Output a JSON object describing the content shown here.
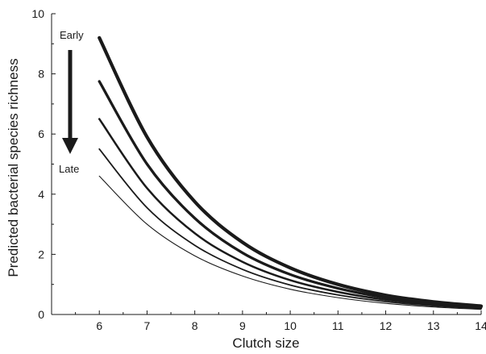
{
  "chart_data": {
    "type": "line",
    "title": "",
    "xlabel": "Clutch size",
    "ylabel": "Predicted bacterial species richness",
    "xlim": [
      5,
      14
    ],
    "ylim": [
      0,
      10
    ],
    "xticks": [
      6,
      7,
      8,
      9,
      10,
      11,
      12,
      13,
      14
    ],
    "yticks": [
      0,
      2,
      4,
      6,
      8,
      10
    ],
    "grid": false,
    "legend": "none",
    "series": [
      {
        "x": [
          6,
          7,
          8,
          9,
          10,
          11,
          12,
          13,
          14
        ],
        "y": [
          9.2,
          5.9,
          3.75,
          2.4,
          1.55,
          1.0,
          0.64,
          0.42,
          0.28
        ],
        "stroke_width": 4.2
      },
      {
        "x": [
          6,
          7,
          8,
          9,
          10,
          11,
          12,
          13,
          14
        ],
        "y": [
          7.75,
          5.0,
          3.2,
          2.05,
          1.33,
          0.87,
          0.56,
          0.37,
          0.25
        ],
        "stroke_width": 3.3
      },
      {
        "x": [
          6,
          7,
          8,
          9,
          10,
          11,
          12,
          13,
          14
        ],
        "y": [
          6.5,
          4.2,
          2.7,
          1.75,
          1.14,
          0.75,
          0.49,
          0.33,
          0.22
        ],
        "stroke_width": 2.5
      },
      {
        "x": [
          6,
          7,
          8,
          9,
          10,
          11,
          12,
          13,
          14
        ],
        "y": [
          5.5,
          3.55,
          2.3,
          1.5,
          0.98,
          0.65,
          0.43,
          0.29,
          0.2
        ],
        "stroke_width": 1.8
      },
      {
        "x": [
          6,
          7,
          8,
          9,
          10,
          11,
          12,
          13,
          14
        ],
        "y": [
          4.6,
          3.0,
          1.95,
          1.28,
          0.84,
          0.56,
          0.37,
          0.25,
          0.17
        ],
        "stroke_width": 1.1
      }
    ],
    "annotations": {
      "early": "Early",
      "late": "Late",
      "arrow": "down"
    },
    "colors": {
      "line": "#1a1a1a",
      "axis": "#1a1a1a"
    }
  }
}
